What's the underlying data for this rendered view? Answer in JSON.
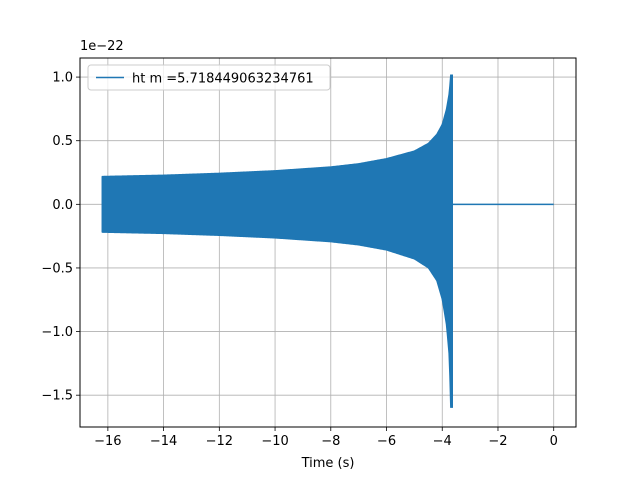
{
  "chart_data": {
    "type": "line",
    "xlabel": "Time (s)",
    "ylabel": "",
    "y_offset_label": "1e−22",
    "xlim": [
      -17,
      0.8
    ],
    "ylim": [
      -1.75,
      1.15
    ],
    "grid": true,
    "legend_placement": "top-left",
    "x_ticks": [
      -16,
      -14,
      -12,
      -10,
      -8,
      -6,
      -4,
      -2,
      0
    ],
    "x_tick_labels": [
      "−16",
      "−14",
      "−12",
      "−10",
      "−8",
      "−6",
      "−4",
      "−2",
      "0"
    ],
    "y_ticks": [
      -1.5,
      -1.0,
      -0.5,
      0.0,
      0.5,
      1.0
    ],
    "y_tick_labels": [
      "−1.5",
      "−1.0",
      "−0.5",
      "0.0",
      "0.5",
      "1.0"
    ],
    "series": [
      {
        "name": "ht m =5.718449063234761",
        "color": "#1f77b4",
        "description_points": {
          "start_time": -16.2,
          "merger_time": -3.65,
          "end_time": 0.0,
          "envelope_upper": [
            [
              -16.2,
              0.22
            ],
            [
              -14,
              0.23
            ],
            [
              -12,
              0.245
            ],
            [
              -10,
              0.265
            ],
            [
              -8,
              0.295
            ],
            [
              -7,
              0.32
            ],
            [
              -6,
              0.36
            ],
            [
              -5,
              0.42
            ],
            [
              -4.5,
              0.48
            ],
            [
              -4.2,
              0.55
            ],
            [
              -4.0,
              0.63
            ],
            [
              -3.85,
              0.75
            ],
            [
              -3.75,
              0.88
            ],
            [
              -3.7,
              1.02
            ]
          ],
          "envelope_lower": [
            [
              -16.2,
              -0.22
            ],
            [
              -14,
              -0.23
            ],
            [
              -12,
              -0.245
            ],
            [
              -10,
              -0.265
            ],
            [
              -8,
              -0.295
            ],
            [
              -7,
              -0.32
            ],
            [
              -6,
              -0.36
            ],
            [
              -5,
              -0.43
            ],
            [
              -4.5,
              -0.5
            ],
            [
              -4.2,
              -0.6
            ],
            [
              -4.0,
              -0.75
            ],
            [
              -3.85,
              -0.95
            ],
            [
              -3.75,
              -1.2
            ],
            [
              -3.7,
              -1.6
            ]
          ]
        }
      }
    ]
  }
}
